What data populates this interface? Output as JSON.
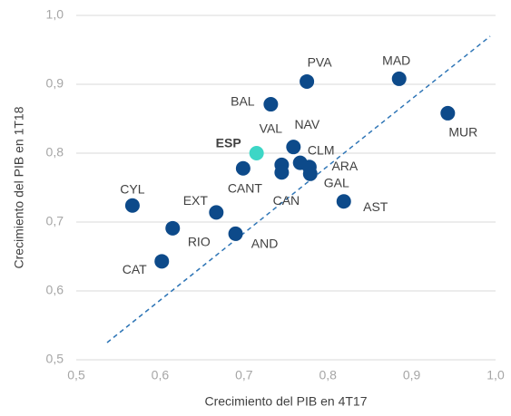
{
  "chart_data": {
    "type": "scatter",
    "x_label": "Crecimiento del PIB en 4T17",
    "y_label": "Crecimiento del PIB en 1T18",
    "labels": [
      "CYL",
      "CAT",
      "RIO",
      "EXT",
      "AND",
      "CANT",
      "ESP",
      "BAL",
      "VAL",
      "CAN",
      "NAV",
      "CLM",
      "ARA",
      "GAL",
      "PVA",
      "AST",
      "MAD",
      "MUR"
    ],
    "x": [
      0.567,
      0.602,
      0.615,
      0.667,
      0.69,
      0.699,
      0.715,
      0.732,
      0.745,
      0.745,
      0.759,
      0.767,
      0.778,
      0.779,
      0.775,
      0.819,
      0.885,
      0.943
    ],
    "values": [
      0.724,
      0.643,
      0.691,
      0.714,
      0.683,
      0.778,
      0.8,
      0.871,
      0.783,
      0.772,
      0.809,
      0.786,
      0.78,
      0.77,
      0.904,
      0.73,
      0.908,
      0.858
    ],
    "colors": [
      "#0d4a8a",
      "#0d4a8a",
      "#0d4a8a",
      "#0d4a8a",
      "#0d4a8a",
      "#0d4a8a",
      "#3dd6c6",
      "#0d4a8a",
      "#0d4a8a",
      "#0d4a8a",
      "#0d4a8a",
      "#0d4a8a",
      "#0d4a8a",
      "#0d4a8a",
      "#0d4a8a",
      "#0d4a8a",
      "#0d4a8a",
      "#0d4a8a"
    ],
    "xlim": [
      0.5,
      1.0
    ],
    "ylim": [
      0.5,
      1.0
    ],
    "xticks": [
      {
        "value": 0.5,
        "label": "0,5"
      },
      {
        "value": 0.6,
        "label": "0,6"
      },
      {
        "value": 0.7,
        "label": "0,7"
      },
      {
        "value": 0.8,
        "label": "0,8"
      },
      {
        "value": 0.9,
        "label": "0,9"
      },
      {
        "value": 1.0,
        "label": "1,0"
      }
    ],
    "yticks": [
      {
        "value": 0.5,
        "label": "0,5"
      },
      {
        "value": 0.6,
        "label": "0,6"
      },
      {
        "value": 0.7,
        "label": "0,7"
      },
      {
        "value": 0.8,
        "label": "0,8"
      },
      {
        "value": 0.9,
        "label": "0,9"
      },
      {
        "value": 1.0,
        "label": "1,0"
      }
    ],
    "grid": true
  }
}
